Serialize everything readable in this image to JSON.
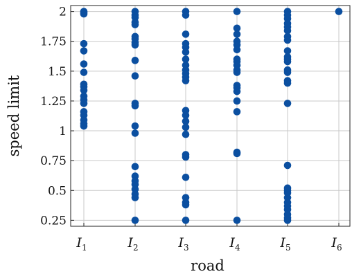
{
  "chart_data": {
    "type": "scatter",
    "xlabel": "road",
    "ylabel": "speed limit",
    "categories": [
      {
        "main": "I",
        "sub": "1"
      },
      {
        "main": "I",
        "sub": "2"
      },
      {
        "main": "I",
        "sub": "3"
      },
      {
        "main": "I",
        "sub": "4"
      },
      {
        "main": "I",
        "sub": "5"
      },
      {
        "main": "I",
        "sub": "6"
      }
    ],
    "ylim": [
      0.2,
      2.05
    ],
    "yticks": [
      0.25,
      0.5,
      0.75,
      1,
      1.25,
      1.5,
      1.75,
      2
    ],
    "ytick_labels": [
      "0.25",
      "0.5",
      "0.75",
      "1",
      "1.25",
      "1.5",
      "1.75",
      "2"
    ],
    "grid": true,
    "marker_color": "#0b4fa0",
    "series": [
      {
        "values": [
          [
            0,
            1.99
          ],
          [
            0,
            2.0
          ],
          [
            0,
            1.98
          ],
          [
            0,
            1.73
          ],
          [
            0,
            1.67
          ],
          [
            0,
            1.56
          ],
          [
            0,
            1.49
          ],
          [
            0,
            1.39
          ],
          [
            0,
            1.37
          ],
          [
            0,
            1.34
          ],
          [
            0,
            1.29
          ],
          [
            0,
            1.26
          ],
          [
            0,
            1.23
          ],
          [
            0,
            1.16
          ],
          [
            0,
            1.13
          ],
          [
            0,
            1.09
          ],
          [
            0,
            1.06
          ],
          [
            0,
            1.04
          ],
          [
            1,
            2.0
          ],
          [
            1,
            1.97
          ],
          [
            1,
            1.95
          ],
          [
            1,
            1.91
          ],
          [
            1,
            1.89
          ],
          [
            1,
            1.79
          ],
          [
            1,
            1.77
          ],
          [
            1,
            1.74
          ],
          [
            1,
            1.72
          ],
          [
            1,
            1.59
          ],
          [
            1,
            1.46
          ],
          [
            1,
            1.23
          ],
          [
            1,
            1.21
          ],
          [
            1,
            1.04
          ],
          [
            1,
            0.98
          ],
          [
            1,
            0.7
          ],
          [
            1,
            0.62
          ],
          [
            1,
            0.58
          ],
          [
            1,
            0.55
          ],
          [
            1,
            0.51
          ],
          [
            1,
            0.47
          ],
          [
            1,
            0.44
          ],
          [
            1,
            0.25
          ],
          [
            2,
            2.0
          ],
          [
            2,
            1.97
          ],
          [
            2,
            1.81
          ],
          [
            2,
            1.73
          ],
          [
            2,
            1.7
          ],
          [
            2,
            1.66
          ],
          [
            2,
            1.6
          ],
          [
            2,
            1.55
          ],
          [
            2,
            1.51
          ],
          [
            2,
            1.48
          ],
          [
            2,
            1.45
          ],
          [
            2,
            1.42
          ],
          [
            2,
            1.17
          ],
          [
            2,
            1.13
          ],
          [
            2,
            1.08
          ],
          [
            2,
            1.03
          ],
          [
            2,
            0.97
          ],
          [
            2,
            0.8
          ],
          [
            2,
            0.78
          ],
          [
            2,
            0.61
          ],
          [
            2,
            0.44
          ],
          [
            2,
            0.4
          ],
          [
            2,
            0.38
          ],
          [
            2,
            0.25
          ],
          [
            3,
            2.0
          ],
          [
            3,
            1.86
          ],
          [
            3,
            1.81
          ],
          [
            3,
            1.75
          ],
          [
            3,
            1.72
          ],
          [
            3,
            1.68
          ],
          [
            3,
            1.6
          ],
          [
            3,
            1.58
          ],
          [
            3,
            1.55
          ],
          [
            3,
            1.51
          ],
          [
            3,
            1.49
          ],
          [
            3,
            1.38
          ],
          [
            3,
            1.36
          ],
          [
            3,
            1.33
          ],
          [
            3,
            1.25
          ],
          [
            3,
            1.16
          ],
          [
            3,
            0.82
          ],
          [
            3,
            0.81
          ],
          [
            3,
            0.25
          ],
          [
            4,
            2.0
          ],
          [
            4,
            1.97
          ],
          [
            4,
            1.94
          ],
          [
            4,
            1.9
          ],
          [
            4,
            1.87
          ],
          [
            4,
            1.84
          ],
          [
            4,
            1.79
          ],
          [
            4,
            1.76
          ],
          [
            4,
            1.67
          ],
          [
            4,
            1.62
          ],
          [
            4,
            1.6
          ],
          [
            4,
            1.58
          ],
          [
            4,
            1.51
          ],
          [
            4,
            1.49
          ],
          [
            4,
            1.42
          ],
          [
            4,
            1.4
          ],
          [
            4,
            1.23
          ],
          [
            4,
            0.71
          ],
          [
            4,
            0.52
          ],
          [
            4,
            0.5
          ],
          [
            4,
            0.48
          ],
          [
            4,
            0.44
          ],
          [
            4,
            0.4
          ],
          [
            4,
            0.37
          ],
          [
            4,
            0.34
          ],
          [
            4,
            0.3
          ],
          [
            4,
            0.27
          ],
          [
            4,
            0.25
          ],
          [
            5,
            2.0
          ]
        ]
      }
    ]
  }
}
